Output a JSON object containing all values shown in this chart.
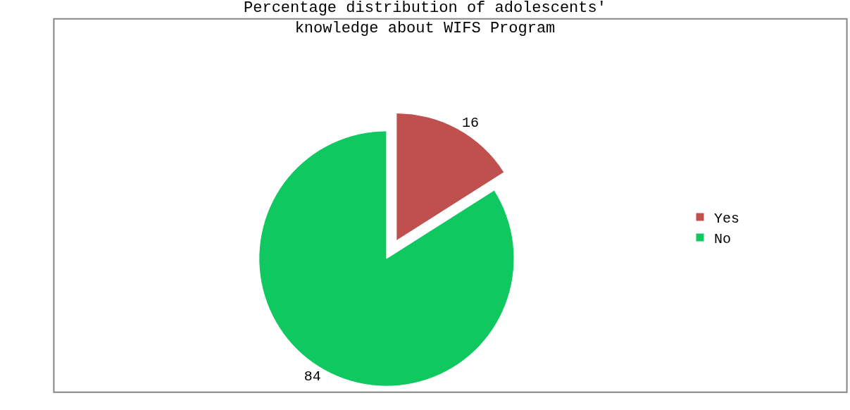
{
  "chart_data": {
    "type": "pie",
    "title": "Percentage distribution of adolescents'\nknowledge about WIFS Program",
    "categories": [
      "Yes",
      "No"
    ],
    "values": [
      16,
      84
    ],
    "colors": [
      "#c0504d",
      "#10c860"
    ],
    "data_labels": true,
    "legend": "right"
  }
}
